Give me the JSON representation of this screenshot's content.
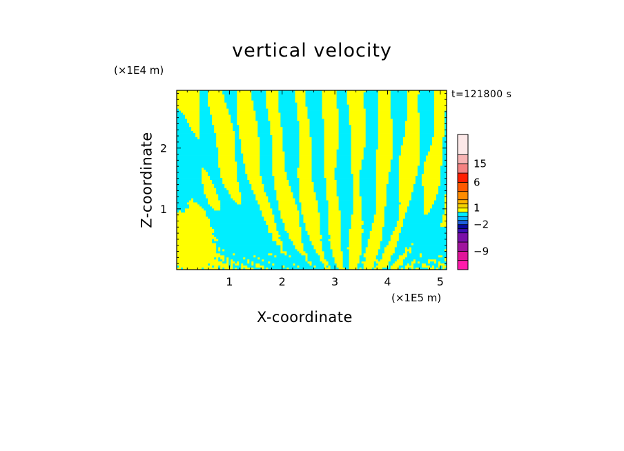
{
  "chart_data": {
    "type": "heatmap",
    "title": "vertical velocity",
    "xlabel": "X-coordinate",
    "ylabel": "Z-coordinate",
    "x_unit": "(×1E5 m)",
    "y_unit": "(×1E4 m)",
    "time_label": "t=121800 s",
    "xlim": [
      0,
      5.12
    ],
    "ylim": [
      0,
      2.95
    ],
    "xticks": [
      1,
      2,
      3,
      4,
      5
    ],
    "yticks": [
      1,
      2
    ],
    "field_colors": {
      "positive": "#ffff00",
      "negative": "#00eeff"
    },
    "colorbar": {
      "levels": [
        {
          "color": "#ff1aab"
        },
        {
          "color": "#e0149a"
        },
        {
          "color": "#a0149e"
        },
        {
          "color": "#7a10a8"
        },
        {
          "color": "#3c10b4"
        },
        {
          "color": "#0a0aa0"
        },
        {
          "color": "#1e5fdc"
        },
        {
          "color": "#00b4ff"
        },
        {
          "color": "#00eeff"
        },
        {
          "color": "#ffff00"
        },
        {
          "color": "#f5d200"
        },
        {
          "color": "#ffb400"
        },
        {
          "color": "#ff8c00"
        },
        {
          "color": "#ff5a00"
        },
        {
          "color": "#ff1e00"
        },
        {
          "color": "#f58282"
        },
        {
          "color": "#f7b4b4"
        },
        {
          "color": "#fce8e8"
        }
      ],
      "tick_labels": [
        "-9",
        "-2",
        "1",
        "6",
        "15"
      ]
    }
  }
}
